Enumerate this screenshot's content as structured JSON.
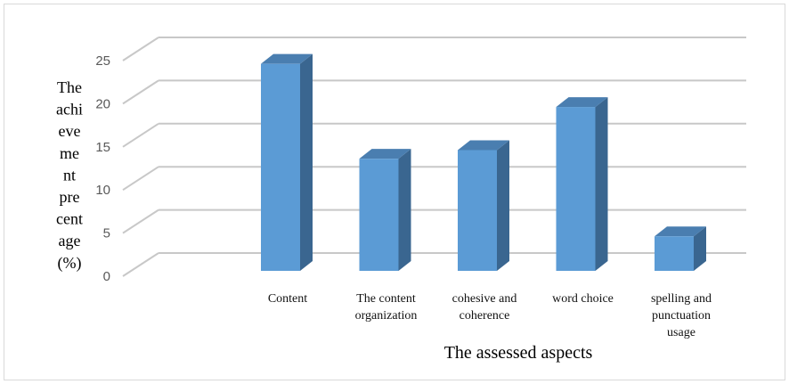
{
  "chart_data": {
    "type": "bar",
    "style": "3d-clustered-column",
    "categories": [
      [
        "Content"
      ],
      [
        "The content",
        "organization"
      ],
      [
        "cohesive and",
        "coherence"
      ],
      [
        "word choice"
      ],
      [
        "spelling and",
        "punctuation",
        "usage"
      ]
    ],
    "values": [
      24,
      13,
      14,
      19,
      4
    ],
    "ylim": [
      0,
      25
    ],
    "yticks": [
      0,
      5,
      10,
      15,
      20,
      25
    ],
    "ylabel_lines": [
      "The",
      "achi",
      "eve",
      "me",
      "nt",
      "pre",
      "cent",
      "age",
      "(%)"
    ],
    "xlabel": "The assessed aspects",
    "grid": true,
    "legend": "none",
    "colors": {
      "bar_front": "#5b9bd5",
      "bar_side": "#3a6690",
      "bar_top": "#4a7eb0",
      "grid": "#c8c8c8"
    }
  }
}
